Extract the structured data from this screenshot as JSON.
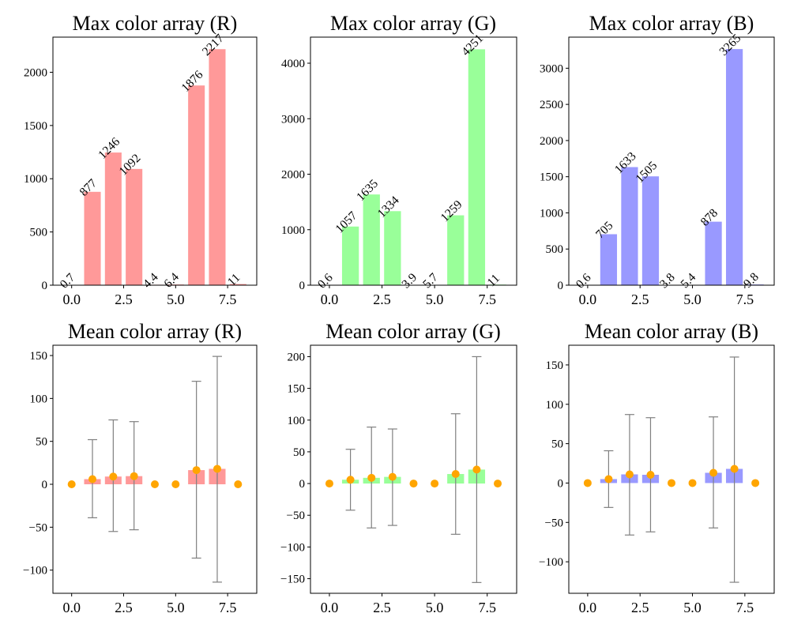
{
  "chart_data": [
    {
      "type": "bar",
      "title": "Max color array (R)",
      "color": "#ff9999",
      "x": [
        0,
        1,
        2,
        3,
        4,
        5,
        6,
        7,
        8
      ],
      "values": [
        0.7,
        877,
        1246,
        1092,
        4.4,
        6.4,
        1876,
        2217,
        11
      ],
      "labels": [
        "0.7",
        "877",
        "1246",
        "1092",
        "4.4",
        "6.4",
        "1876",
        "2217",
        "11"
      ],
      "xlim": [
        -0.9,
        8.9
      ],
      "ylim": [
        0,
        2330
      ],
      "xticks": [
        0.0,
        2.5,
        5.0,
        7.5
      ],
      "xtick_labels": [
        "0.0",
        "2.5",
        "5.0",
        "7.5"
      ],
      "yticks": [
        0,
        500,
        1000,
        1500,
        2000
      ],
      "ytick_labels": [
        "0",
        "500",
        "1000",
        "1500",
        "2000"
      ]
    },
    {
      "type": "bar",
      "title": "Max color array (G)",
      "color": "#99ff99",
      "x": [
        0,
        1,
        2,
        3,
        4,
        5,
        6,
        7,
        8
      ],
      "values": [
        0.6,
        1057,
        1635,
        1334,
        3.9,
        5.7,
        1259,
        4251,
        11
      ],
      "labels": [
        "0.6",
        "1057",
        "1635",
        "1334",
        "3.9",
        "5.7",
        "1259",
        "4251",
        "11"
      ],
      "xlim": [
        -0.9,
        8.9
      ],
      "ylim": [
        0,
        4470
      ],
      "xticks": [
        0.0,
        2.5,
        5.0,
        7.5
      ],
      "xtick_labels": [
        "0.0",
        "2.5",
        "5.0",
        "7.5"
      ],
      "yticks": [
        0,
        1000,
        2000,
        3000,
        4000
      ],
      "ytick_labels": [
        "0",
        "1000",
        "2000",
        "3000",
        "4000"
      ]
    },
    {
      "type": "bar",
      "title": "Max color array (B)",
      "color": "#9999ff",
      "x": [
        0,
        1,
        2,
        3,
        4,
        5,
        6,
        7,
        8
      ],
      "values": [
        0.6,
        705,
        1633,
        1505,
        3.8,
        5.4,
        878,
        3265,
        9.8
      ],
      "labels": [
        "0.6",
        "705",
        "1633",
        "1505",
        "3.8",
        "5.4",
        "878",
        "3265",
        "9.8"
      ],
      "xlim": [
        -0.9,
        8.9
      ],
      "ylim": [
        0,
        3430
      ],
      "xticks": [
        0.0,
        2.5,
        5.0,
        7.5
      ],
      "xtick_labels": [
        "0.0",
        "2.5",
        "5.0",
        "7.5"
      ],
      "yticks": [
        0,
        500,
        1000,
        1500,
        2000,
        2500,
        3000
      ],
      "ytick_labels": [
        "0",
        "500",
        "1000",
        "1500",
        "2000",
        "2500",
        "3000"
      ]
    },
    {
      "type": "bar",
      "title": "Mean color array (R)",
      "color": "#ff9999",
      "marker_color": "#ffa500",
      "errorbar_color": "#808080",
      "x": [
        0,
        1,
        2,
        3,
        4,
        5,
        6,
        7,
        8
      ],
      "values": [
        0,
        6,
        9,
        9.5,
        0,
        0,
        16.5,
        18,
        0
      ],
      "err_low": [
        0,
        -39,
        -55,
        -53,
        0,
        0,
        -86,
        -114,
        0
      ],
      "err_high": [
        0,
        52,
        75,
        73,
        0,
        0,
        120,
        149,
        0
      ],
      "xlim": [
        -0.9,
        8.9
      ],
      "ylim": [
        -127,
        162
      ],
      "xticks": [
        0.0,
        2.5,
        5.0,
        7.5
      ],
      "xtick_labels": [
        "0.0",
        "2.5",
        "5.0",
        "7.5"
      ],
      "yticks": [
        -100,
        -50,
        0,
        50,
        100,
        150
      ],
      "ytick_labels": [
        "−100",
        "−50",
        "0",
        "50",
        "100",
        "150"
      ]
    },
    {
      "type": "bar",
      "title": "Mean color array (G)",
      "color": "#99ff99",
      "marker_color": "#ffa500",
      "errorbar_color": "#808080",
      "x": [
        0,
        1,
        2,
        3,
        4,
        5,
        6,
        7,
        8
      ],
      "values": [
        0,
        6,
        9,
        10.5,
        0,
        0,
        15,
        22,
        0
      ],
      "err_low": [
        0,
        -42,
        -70,
        -66,
        0,
        0,
        -80,
        -156,
        0
      ],
      "err_high": [
        0,
        54,
        89,
        86,
        0,
        0,
        110,
        200,
        0
      ],
      "xlim": [
        -0.9,
        8.9
      ],
      "ylim": [
        -173,
        218
      ],
      "xticks": [
        0.0,
        2.5,
        5.0,
        7.5
      ],
      "xtick_labels": [
        "0.0",
        "2.5",
        "5.0",
        "7.5"
      ],
      "yticks": [
        -150,
        -100,
        -50,
        0,
        50,
        100,
        150,
        200
      ],
      "ytick_labels": [
        "−150",
        "−100",
        "−50",
        "0",
        "50",
        "100",
        "150",
        "200"
      ]
    },
    {
      "type": "bar",
      "title": "Mean color array (B)",
      "color": "#9999ff",
      "marker_color": "#ffa500",
      "errorbar_color": "#808080",
      "x": [
        0,
        1,
        2,
        3,
        4,
        5,
        6,
        7,
        8
      ],
      "values": [
        0,
        5,
        11,
        10.5,
        0,
        0,
        13,
        18,
        0
      ],
      "err_low": [
        0,
        -31,
        -66,
        -62,
        0,
        0,
        -57,
        -126,
        0
      ],
      "err_high": [
        0,
        41,
        87,
        83,
        0,
        0,
        84,
        160,
        0
      ],
      "xlim": [
        -0.9,
        8.9
      ],
      "ylim": [
        -140,
        175
      ],
      "xticks": [
        0.0,
        2.5,
        5.0,
        7.5
      ],
      "xtick_labels": [
        "0.0",
        "2.5",
        "5.0",
        "7.5"
      ],
      "yticks": [
        -100,
        -50,
        0,
        50,
        100,
        150
      ],
      "ytick_labels": [
        "−100",
        "−50",
        "0",
        "50",
        "100",
        "150"
      ]
    }
  ]
}
